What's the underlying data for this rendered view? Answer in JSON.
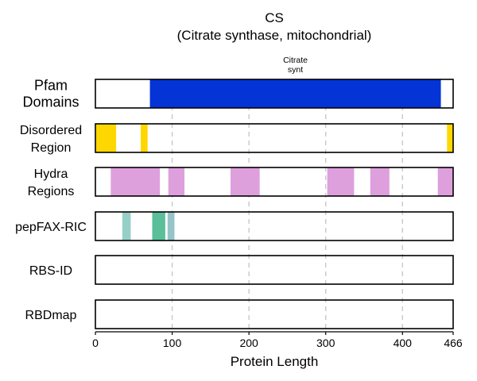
{
  "chart_data": {
    "type": "bar",
    "title": "CS",
    "subtitle": "(Citrate synthase, mitochondrial)",
    "xlabel": "Protein Length",
    "xlim": [
      0,
      466
    ],
    "xticks": [
      0,
      100,
      200,
      300,
      400,
      466
    ],
    "grid": "vertical dashed",
    "tracks": [
      {
        "label_lines": [
          "Pfam",
          "Domains"
        ],
        "segments": [
          {
            "start": 71,
            "end": 450,
            "color": "#0433d6",
            "label_lines": [
              "Citrate",
              "synt"
            ]
          }
        ]
      },
      {
        "label_lines": [
          "Disordered",
          "Region"
        ],
        "segments": [
          {
            "start": 1,
            "end": 27,
            "color": "#ffd700"
          },
          {
            "start": 59,
            "end": 68,
            "color": "#ffd700"
          },
          {
            "start": 458,
            "end": 466,
            "color": "#ffd700"
          }
        ]
      },
      {
        "label_lines": [
          "Hydra",
          "Regions"
        ],
        "segments": [
          {
            "start": 20,
            "end": 84,
            "color": "#dda0dd"
          },
          {
            "start": 95,
            "end": 116,
            "color": "#dda0dd"
          },
          {
            "start": 176,
            "end": 214,
            "color": "#dda0dd"
          },
          {
            "start": 302,
            "end": 337,
            "color": "#dda0dd"
          },
          {
            "start": 358,
            "end": 383,
            "color": "#dda0dd"
          },
          {
            "start": 446,
            "end": 466,
            "color": "#dda0dd"
          }
        ]
      },
      {
        "label_lines": [
          "pepFAX-RIC"
        ],
        "segments": [
          {
            "start": 35,
            "end": 46,
            "color": "#96cfc8"
          },
          {
            "start": 74,
            "end": 91,
            "color": "#5bbf9c"
          },
          {
            "start": 94,
            "end": 103,
            "color": "#96c4c8"
          }
        ]
      },
      {
        "label_lines": [
          "RBS-ID"
        ],
        "segments": []
      },
      {
        "label_lines": [
          "RBDmap"
        ],
        "segments": []
      }
    ]
  }
}
